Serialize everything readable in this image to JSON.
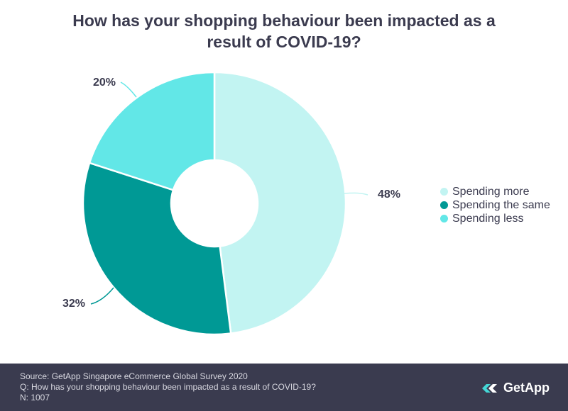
{
  "chart_data": {
    "type": "pie",
    "variant": "donut",
    "title": "How has your shopping behaviour been impacted as a result of COVID-19?",
    "title_lines": [
      "How has your shopping behaviour been impacted as a",
      "result of COVID-19?"
    ],
    "categories": [
      "Spending more",
      "Spending the same",
      "Spending less"
    ],
    "values": [
      48,
      32,
      20
    ],
    "labels": [
      "48%",
      "32%",
      "20%"
    ],
    "colors": [
      "#c2f4f2",
      "#009995",
      "#62e7e7"
    ],
    "legend_position": "right"
  },
  "footer": {
    "source": "Source: GetApp Singapore eCommerce Global Survey 2020",
    "question": "Q: How has your shopping behaviour been impacted as a result of COVID-19?",
    "sample": "N: 1007"
  },
  "brand": {
    "logo_text": "GetApp",
    "footer_color": "#3a3b4f"
  }
}
